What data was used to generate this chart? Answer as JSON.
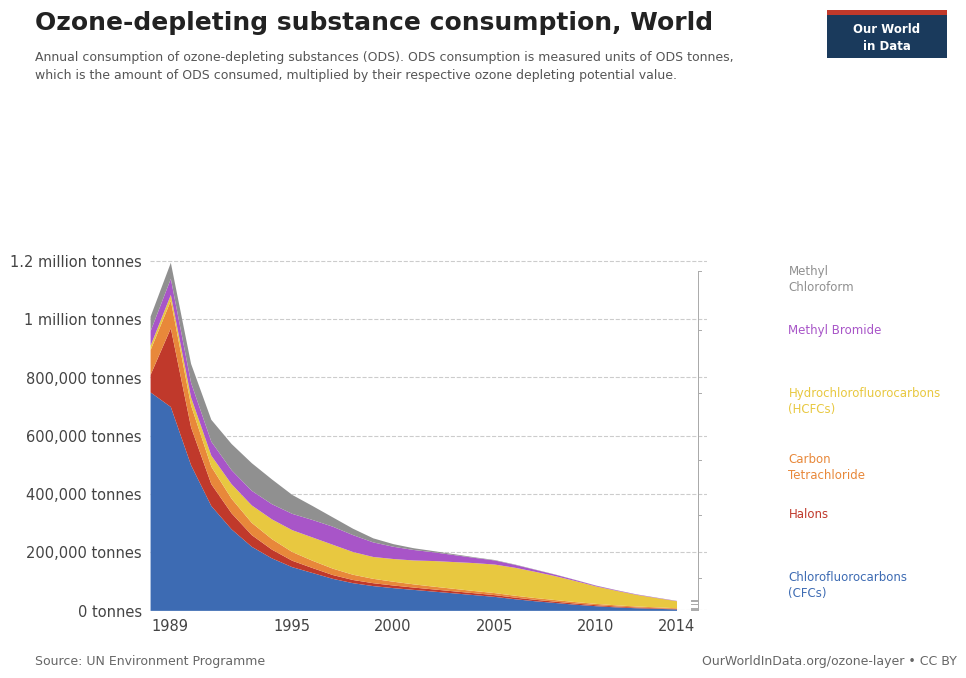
{
  "title": "Ozone-depleting substance consumption, World",
  "subtitle": "Annual consumption of ozone-depleting substances (ODS). ODS consumption is measured units of ODS tonnes,\nwhich is the amount of ODS consumed, multiplied by their respective ozone depleting potential value.",
  "source": "Source: UN Environment Programme",
  "credit": "OurWorldInData.org/ozone-layer • CC BY",
  "years": [
    1988,
    1989,
    1990,
    1991,
    1992,
    1993,
    1994,
    1995,
    1996,
    1997,
    1998,
    1999,
    2000,
    2001,
    2002,
    2003,
    2004,
    2005,
    2006,
    2007,
    2008,
    2009,
    2010,
    2011,
    2012,
    2013,
    2014
  ],
  "series": {
    "CFCs": {
      "color": "#3d6bb3",
      "values": [
        750000,
        700000,
        500000,
        360000,
        280000,
        220000,
        180000,
        150000,
        130000,
        110000,
        95000,
        85000,
        78000,
        72000,
        66000,
        60000,
        54000,
        48000,
        40000,
        33000,
        27000,
        21000,
        16000,
        12000,
        9000,
        7000,
        5000
      ]
    },
    "Halons": {
      "color": "#c0392b",
      "values": [
        60000,
        270000,
        130000,
        75000,
        55000,
        40000,
        30000,
        22000,
        17000,
        13000,
        11000,
        10000,
        9000,
        8000,
        7500,
        7000,
        6500,
        6000,
        5500,
        5000,
        4500,
        4000,
        3500,
        3000,
        2500,
        2000,
        1500
      ]
    },
    "CarbonTetrachloride": {
      "color": "#e8883a",
      "values": [
        85000,
        95000,
        75000,
        60000,
        50000,
        42000,
        36000,
        30000,
        25000,
        22000,
        18000,
        15000,
        13000,
        11000,
        9500,
        8500,
        7500,
        7000,
        6500,
        6000,
        5500,
        5000,
        4500,
        4000,
        3500,
        3000,
        2500
      ]
    },
    "HCFCs": {
      "color": "#e8c840",
      "values": [
        15000,
        20000,
        28000,
        38000,
        50000,
        60000,
        68000,
        75000,
        80000,
        82000,
        78000,
        75000,
        78000,
        82000,
        88000,
        92000,
        96000,
        98000,
        96000,
        90000,
        82000,
        72000,
        60000,
        50000,
        40000,
        32000,
        24000
      ]
    },
    "MethylBromide": {
      "color": "#a855c8",
      "values": [
        50000,
        55000,
        50000,
        48000,
        48000,
        50000,
        52000,
        56000,
        60000,
        62000,
        58000,
        50000,
        42000,
        36000,
        30000,
        24000,
        18000,
        14000,
        10000,
        7000,
        5000,
        3500,
        2500,
        2000,
        1500,
        1200,
        1000
      ]
    },
    "MethylChloroform": {
      "color": "#909090",
      "values": [
        50000,
        55000,
        65000,
        75000,
        90000,
        95000,
        85000,
        65000,
        48000,
        32000,
        22000,
        14000,
        9000,
        6000,
        4000,
        3000,
        2000,
        1500,
        1200,
        900,
        700,
        550,
        450,
        350,
        280,
        220,
        170
      ]
    }
  },
  "series_order": [
    "CFCs",
    "Halons",
    "CarbonTetrachloride",
    "HCFCs",
    "MethylBromide",
    "MethylChloroform"
  ],
  "legend_entries": [
    {
      "key": "MethylChloroform",
      "label": "Methyl\nChloroform",
      "color": "#909090"
    },
    {
      "key": "MethylBromide",
      "label": "Methyl Bromide",
      "color": "#a855c8"
    },
    {
      "key": "HCFCs",
      "label": "Hydrochlorofluorocarbons\n(HCFCs)",
      "color": "#e8c840"
    },
    {
      "key": "CarbonTetrachloride",
      "label": "Carbon\nTetrachloride",
      "color": "#e8883a"
    },
    {
      "key": "Halons",
      "label": "Halons",
      "color": "#c0392b"
    },
    {
      "key": "CFCs",
      "label": "Chlorofluorocarbons\n(CFCs)",
      "color": "#3d6bb3"
    }
  ],
  "yticks": [
    0,
    200000,
    400000,
    600000,
    800000,
    1000000,
    1200000
  ],
  "ytick_labels": [
    "0 tonnes",
    "200,000 tonnes",
    "400,000 tonnes",
    "600,000 tonnes",
    "800,000 tonnes",
    "1 million tonnes",
    "1.2 million tonnes"
  ],
  "xticks": [
    1989,
    1995,
    2000,
    2005,
    2010,
    2014
  ],
  "xlim": [
    1988,
    2015.5
  ],
  "ylim": [
    0,
    1350000
  ],
  "background_color": "#ffffff",
  "owid_box_color": "#1a3a5c",
  "owid_box_text": "Our World\nin Data"
}
